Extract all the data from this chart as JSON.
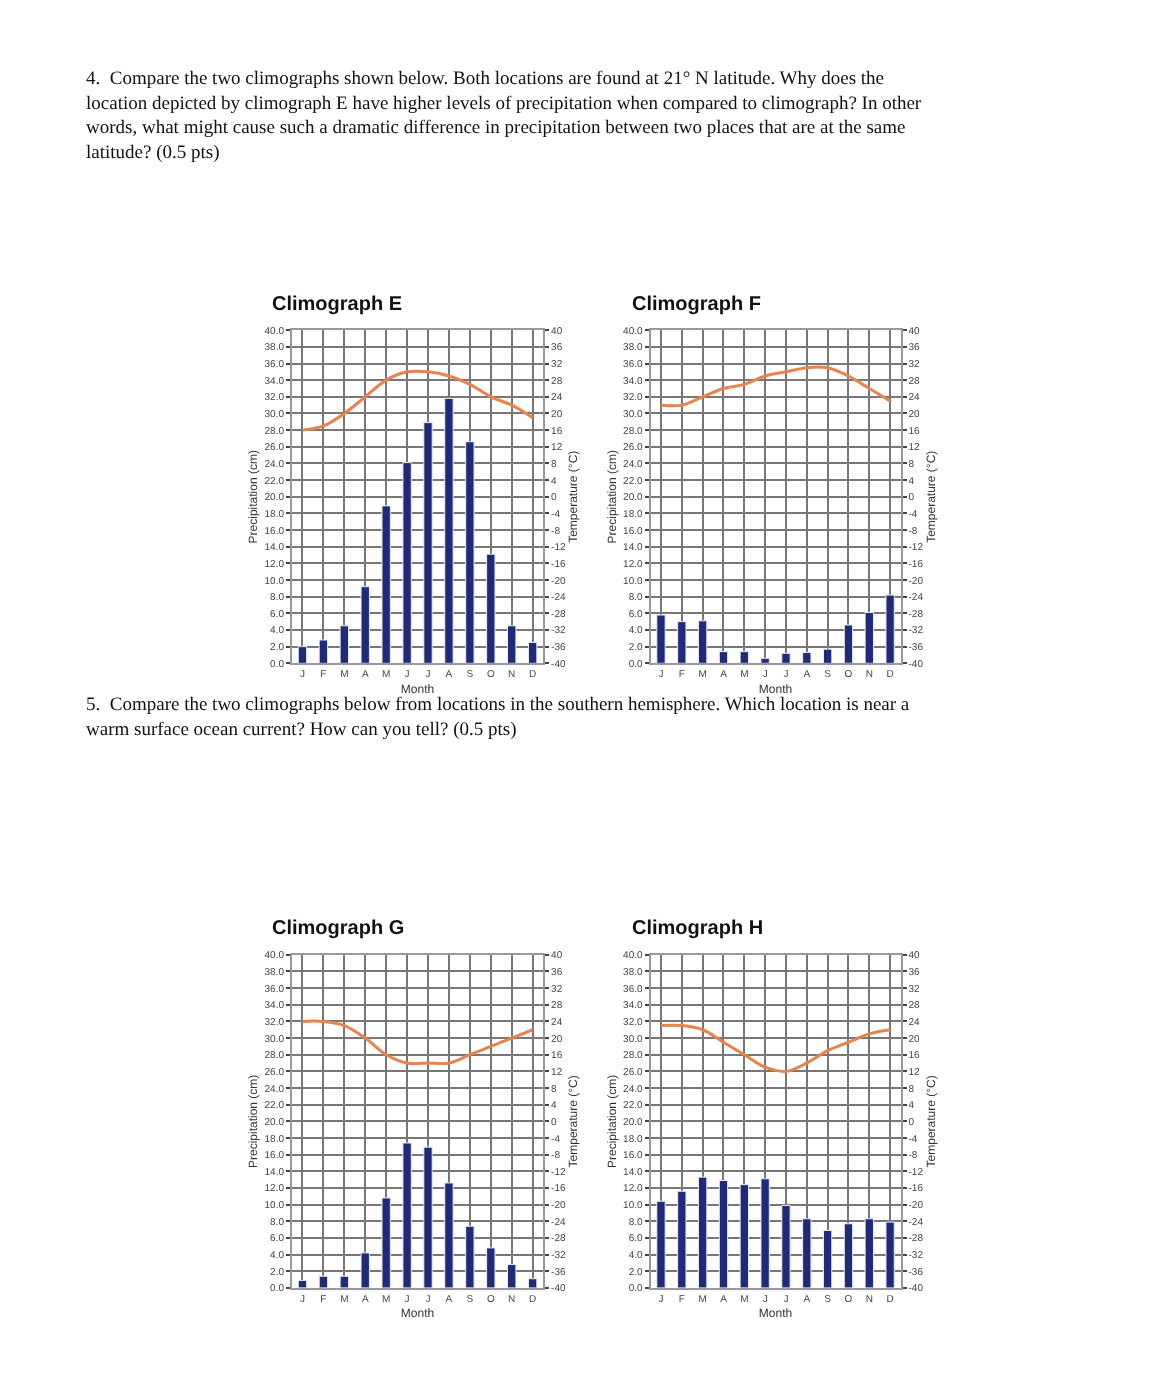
{
  "chart_data": [
    {
      "type": "bar",
      "title": "Climograph E",
      "xlabel": "Month",
      "ylabel": "Precipitation (cm)",
      "y2label": "Temperature (°C)",
      "annotations": [
        "4.  Compare the two climographs shown below. Both locations are found at 21° N latitude. Why does the location depicted by climograph E have higher levels of precipitation when compared to climograph? In other words, what might cause such a dramatic difference in precipitation between two places that are at the same latitude? (0.5 pts)"
      ],
      "categories": [
        "J",
        "F",
        "M",
        "A",
        "M",
        "J",
        "J",
        "A",
        "S",
        "O",
        "N",
        "D"
      ],
      "series": [
        {
          "color": "#1f2a7a",
          "values": [
            2.0,
            2.8,
            4.5,
            9.2,
            18.9,
            24.1,
            28.9,
            31.8,
            26.6,
            13.1,
            4.5,
            2.5
          ]
        },
        {
          "type": "line",
          "axis": "y2",
          "color": "#e8834a",
          "values": [
            16,
            17,
            20,
            24,
            28,
            30,
            30,
            29,
            27,
            24,
            22,
            19
          ]
        }
      ],
      "ylim": [
        0,
        40
      ],
      "yticks": [
        {
          "value": 0,
          "label": "0.0"
        },
        {
          "value": 2,
          "label": "2.0"
        },
        {
          "value": 4,
          "label": "4.0"
        },
        {
          "value": 6,
          "label": "6.0"
        },
        {
          "value": 8,
          "label": "8.0"
        },
        {
          "value": 10,
          "label": "10.0"
        },
        {
          "value": 12,
          "label": "12.0"
        },
        {
          "value": 14,
          "label": "14.0"
        },
        {
          "value": 16,
          "label": "16.0"
        },
        {
          "value": 18,
          "label": "18.0"
        },
        {
          "value": 20,
          "label": "20.0"
        },
        {
          "value": 22,
          "label": "22.0"
        },
        {
          "value": 24,
          "label": "24.0"
        },
        {
          "value": 26,
          "label": "26.0"
        },
        {
          "value": 28,
          "label": "28.0"
        },
        {
          "value": 30,
          "label": "30.0"
        },
        {
          "value": 32,
          "label": "32.0"
        },
        {
          "value": 34,
          "label": "34.0"
        },
        {
          "value": 36,
          "label": "36.0"
        },
        {
          "value": 38,
          "label": "38.0"
        },
        {
          "value": 40,
          "label": "40.0"
        }
      ],
      "y2lim": [
        -40,
        40
      ],
      "y2ticks": [
        -40,
        -36,
        -32,
        -28,
        -24,
        -20,
        -16,
        -12,
        -8,
        -4,
        0,
        4,
        8,
        12,
        16,
        20,
        24,
        28,
        32,
        36,
        40
      ],
      "grid": true,
      "marker": "none"
    },
    {
      "type": "bar",
      "title": "Climograph F",
      "xlabel": "Month",
      "ylabel": "Precipitation (cm)",
      "y2label": "Temperature (°C)",
      "categories": [
        "J",
        "F",
        "M",
        "A",
        "M",
        "J",
        "J",
        "A",
        "S",
        "O",
        "N",
        "D"
      ],
      "series": [
        {
          "color": "#1f2a7a",
          "values": [
            5.8,
            5.0,
            5.1,
            1.4,
            1.4,
            0.6,
            1.2,
            1.3,
            1.7,
            4.6,
            6.1,
            8.2
          ]
        },
        {
          "type": "line",
          "axis": "y2",
          "color": "#e8834a",
          "values": [
            22,
            22,
            24,
            26,
            27,
            29,
            30,
            31,
            31,
            29,
            26,
            23
          ]
        }
      ],
      "ylim": [
        0,
        40
      ],
      "yticks": [
        {
          "value": 0,
          "label": "0.0"
        },
        {
          "value": 2,
          "label": "2.0"
        },
        {
          "value": 4,
          "label": "4.0"
        },
        {
          "value": 6,
          "label": "6.0"
        },
        {
          "value": 8,
          "label": "8.0"
        },
        {
          "value": 10,
          "label": "10.0"
        },
        {
          "value": 12,
          "label": "12.0"
        },
        {
          "value": 14,
          "label": "14.0"
        },
        {
          "value": 16,
          "label": "16.0"
        },
        {
          "value": 18,
          "label": "18.0"
        },
        {
          "value": 20,
          "label": "20.0"
        },
        {
          "value": 22,
          "label": "22.0"
        },
        {
          "value": 24,
          "label": "24.0"
        },
        {
          "value": 26,
          "label": "26.0"
        },
        {
          "value": 28,
          "label": "28.0"
        },
        {
          "value": 30,
          "label": "30.0"
        },
        {
          "value": 32,
          "label": "32.0"
        },
        {
          "value": 34,
          "label": "34.0"
        },
        {
          "value": 36,
          "label": "36.0"
        },
        {
          "value": 38,
          "label": "38.0"
        },
        {
          "value": 40,
          "label": "40.0"
        }
      ],
      "y2lim": [
        -40,
        40
      ],
      "y2ticks": [
        -40,
        -36,
        -32,
        -28,
        -24,
        -20,
        -16,
        -12,
        -8,
        -4,
        0,
        4,
        8,
        12,
        16,
        20,
        24,
        28,
        32,
        36,
        40
      ],
      "grid": true,
      "marker": "none"
    },
    {
      "type": "bar",
      "title": "Climograph G",
      "xlabel": "Month",
      "ylabel": "Precipitation (cm)",
      "y2label": "Temperature (°C)",
      "annotations": [
        "5.  Compare the two climographs below from locations in the southern hemisphere. Which location is near a warm surface ocean current? How can you tell? (0.5 pts)"
      ],
      "categories": [
        "J",
        "F",
        "M",
        "A",
        "M",
        "J",
        "J",
        "A",
        "S",
        "O",
        "N",
        "D"
      ],
      "series": [
        {
          "color": "#1f2a7a",
          "values": [
            0.9,
            1.4,
            1.4,
            4.2,
            10.8,
            17.4,
            16.9,
            12.6,
            7.4,
            4.8,
            2.8,
            1.1
          ]
        },
        {
          "type": "line",
          "axis": "y2",
          "color": "#e8834a",
          "values": [
            24,
            24,
            23,
            20,
            16,
            14,
            14,
            14,
            16,
            18,
            20,
            22
          ]
        }
      ],
      "ylim": [
        0,
        40
      ],
      "yticks": [
        {
          "value": 0,
          "label": "0.0"
        },
        {
          "value": 2,
          "label": "2.0"
        },
        {
          "value": 4,
          "label": "4.0"
        },
        {
          "value": 6,
          "label": "6.0"
        },
        {
          "value": 8,
          "label": "8.0"
        },
        {
          "value": 10,
          "label": "10.0"
        },
        {
          "value": 12,
          "label": "12.0"
        },
        {
          "value": 14,
          "label": "14.0"
        },
        {
          "value": 16,
          "label": "16.0"
        },
        {
          "value": 18,
          "label": "18.0"
        },
        {
          "value": 20,
          "label": "20.0"
        },
        {
          "value": 22,
          "label": "22.0"
        },
        {
          "value": 24,
          "label": "24.0"
        },
        {
          "value": 26,
          "label": "26.0"
        },
        {
          "value": 28,
          "label": "28.0"
        },
        {
          "value": 30,
          "label": "30.0"
        },
        {
          "value": 32,
          "label": "32.0"
        },
        {
          "value": 34,
          "label": "34.0"
        },
        {
          "value": 36,
          "label": "36.0"
        },
        {
          "value": 38,
          "label": "38.0"
        },
        {
          "value": 40,
          "label": "40.0"
        }
      ],
      "y2lim": [
        -40,
        40
      ],
      "y2ticks": [
        -40,
        -36,
        -32,
        -28,
        -24,
        -20,
        -16,
        -12,
        -8,
        -4,
        0,
        4,
        8,
        12,
        16,
        20,
        24,
        28,
        32,
        36,
        40
      ],
      "grid": true,
      "marker": "none"
    },
    {
      "type": "bar",
      "title": "Climograph H",
      "xlabel": "Month",
      "ylabel": "Precipitation (cm)",
      "y2label": "Temperature (°C)",
      "categories": [
        "J",
        "F",
        "M",
        "A",
        "M",
        "J",
        "J",
        "A",
        "S",
        "O",
        "N",
        "D"
      ],
      "series": [
        {
          "color": "#1f2a7a",
          "values": [
            10.4,
            11.6,
            13.3,
            12.9,
            12.4,
            13.1,
            9.9,
            8.3,
            6.9,
            7.7,
            8.3,
            7.9
          ]
        },
        {
          "type": "line",
          "axis": "y2",
          "color": "#e8834a",
          "values": [
            23,
            23,
            22,
            19,
            16,
            13,
            12,
            14,
            17,
            19,
            21,
            22
          ]
        }
      ],
      "ylim": [
        0,
        40
      ],
      "yticks": [
        {
          "value": 0,
          "label": "0.0"
        },
        {
          "value": 2,
          "label": "2.0"
        },
        {
          "value": 4,
          "label": "4.0"
        },
        {
          "value": 6,
          "label": "6.0"
        },
        {
          "value": 8,
          "label": "8.0"
        },
        {
          "value": 10,
          "label": "10.0"
        },
        {
          "value": 12,
          "label": "12.0"
        },
        {
          "value": 14,
          "label": "14.0"
        },
        {
          "value": 16,
          "label": "16.0"
        },
        {
          "value": 18,
          "label": "18.0"
        },
        {
          "value": 20,
          "label": "20.0"
        },
        {
          "value": 22,
          "label": "22.0"
        },
        {
          "value": 24,
          "label": "24.0"
        },
        {
          "value": 26,
          "label": "26.0"
        },
        {
          "value": 28,
          "label": "28.0"
        },
        {
          "value": 30,
          "label": "30.0"
        },
        {
          "value": 32,
          "label": "32.0"
        },
        {
          "value": 34,
          "label": "34.0"
        },
        {
          "value": 36,
          "label": "36.0"
        },
        {
          "value": 38,
          "label": "38.0"
        },
        {
          "value": 40,
          "label": "40.0"
        }
      ],
      "y2lim": [
        -40,
        40
      ],
      "y2ticks": [
        -40,
        -36,
        -32,
        -28,
        -24,
        -20,
        -16,
        -12,
        -8,
        -4,
        0,
        4,
        8,
        12,
        16,
        20,
        24,
        28,
        32,
        36,
        40
      ],
      "grid": true,
      "marker": "none"
    }
  ]
}
